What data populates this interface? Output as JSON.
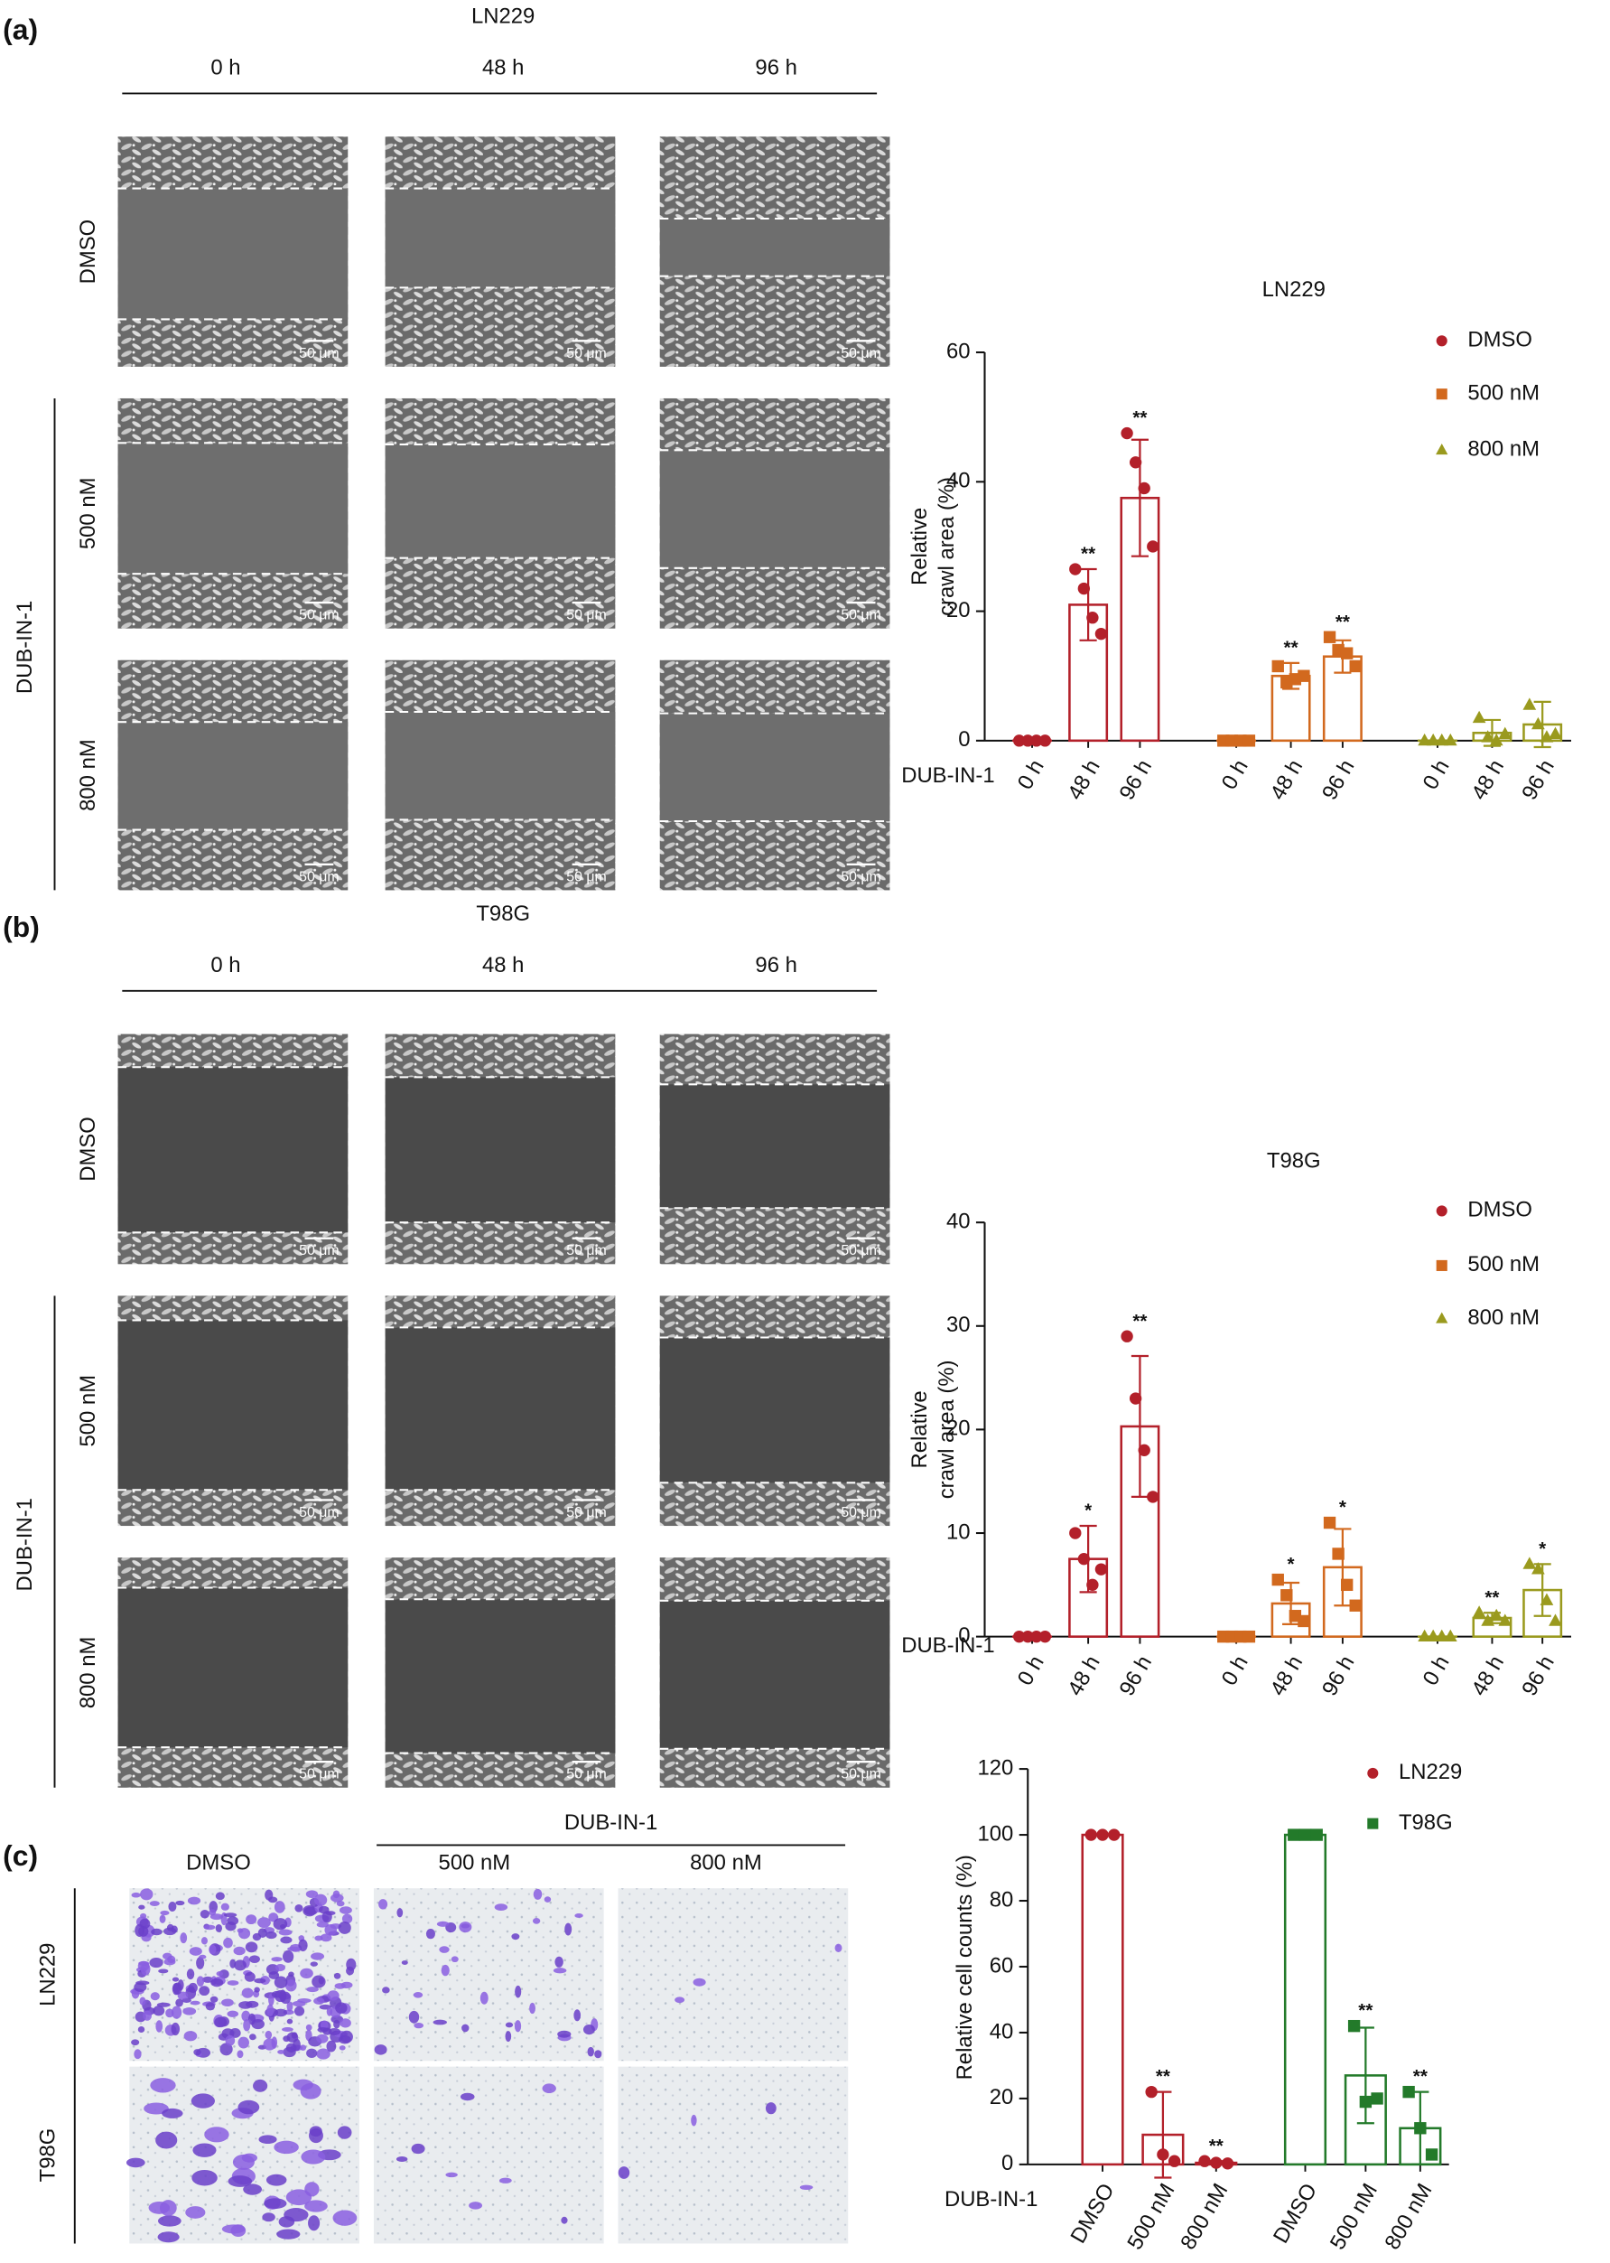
{
  "panels": [
    {
      "label": "(a)",
      "cell_line": "LN229",
      "times": [
        "0 h",
        "48 h",
        "96 h"
      ],
      "rows": [
        "DMSO",
        "500 nM",
        "800 nM"
      ],
      "treatment": "DUB-IN-1",
      "scale_bar": "50 μm"
    },
    {
      "label": "(b)",
      "cell_line": "T98G",
      "times": [
        "0 h",
        "48 h",
        "96 h"
      ],
      "rows": [
        "DMSO",
        "500 nM",
        "800 nM"
      ],
      "treatment": "DUB-IN-1",
      "scale_bar": "50 μm"
    },
    {
      "label": "(c)",
      "treatment": "DUB-IN-1",
      "columns": [
        "DMSO",
        "500 nM",
        "800 nM"
      ],
      "rows": [
        "LN229",
        "T98G"
      ]
    }
  ],
  "chart_data": [
    {
      "type": "bar",
      "title": "LN229",
      "ylabel": [
        "Relative",
        "crawl area (%)"
      ],
      "group_label": "DUB-IN-1",
      "categories": [
        "0 h",
        "48 h",
        "96 h"
      ],
      "ylim": [
        0,
        60
      ],
      "yticks": [
        0,
        20,
        40,
        60
      ],
      "series": [
        {
          "name": "DMSO",
          "color": "#b3202a",
          "marker": "circle",
          "values": [
            0,
            21,
            37.5
          ],
          "errors": [
            0,
            5.5,
            9
          ],
          "points": [
            [
              0,
              0,
              0,
              0
            ],
            [
              26.5,
              23.5,
              19,
              16.5
            ],
            [
              47.5,
              43,
              39,
              30
            ]
          ],
          "annotations": [
            null,
            "**",
            "**"
          ]
        },
        {
          "name": "500 nM",
          "color": "#d2691e",
          "marker": "square",
          "values": [
            0,
            10,
            13
          ],
          "errors": [
            0,
            2,
            2.5
          ],
          "points": [
            [
              0,
              0,
              0,
              0
            ],
            [
              11.5,
              9,
              9.5,
              10
            ],
            [
              16,
              14,
              13.5,
              11.5
            ]
          ],
          "annotations": [
            null,
            "**",
            "**"
          ]
        },
        {
          "name": "800 nM",
          "color": "#9a9a1e",
          "marker": "triangle",
          "values": [
            0,
            1.2,
            2.5
          ],
          "errors": [
            0,
            2,
            3.5
          ],
          "points": [
            [
              0,
              0,
              0,
              0
            ],
            [
              3.5,
              0.5,
              0,
              1
            ],
            [
              5.5,
              2.5,
              0.5,
              1
            ]
          ],
          "annotations": [
            null,
            null,
            null
          ]
        }
      ]
    },
    {
      "type": "bar",
      "title": "T98G",
      "ylabel": [
        "Relative",
        "crawl area (%)"
      ],
      "group_label": "DUB-IN-1",
      "categories": [
        "0 h",
        "48 h",
        "96 h"
      ],
      "ylim": [
        0,
        40
      ],
      "yticks": [
        0,
        10,
        20,
        30,
        40
      ],
      "series": [
        {
          "name": "DMSO",
          "color": "#b3202a",
          "marker": "circle",
          "values": [
            0,
            7.5,
            20.3
          ],
          "errors": [
            0,
            3.2,
            6.8
          ],
          "points": [
            [
              0,
              0,
              0,
              0
            ],
            [
              10,
              7.5,
              5,
              6.5
            ],
            [
              29,
              23,
              18,
              13.5
            ]
          ],
          "annotations": [
            null,
            "*",
            "**"
          ]
        },
        {
          "name": "500 nM",
          "color": "#d2691e",
          "marker": "square",
          "values": [
            0,
            3.2,
            6.7
          ],
          "errors": [
            0,
            2,
            3.7
          ],
          "points": [
            [
              0,
              0,
              0,
              0
            ],
            [
              5.5,
              4,
              2,
              1.5
            ],
            [
              11,
              8,
              5,
              3
            ]
          ],
          "annotations": [
            null,
            "*",
            "*"
          ]
        },
        {
          "name": "800 nM",
          "color": "#9a9a1e",
          "marker": "triangle",
          "values": [
            0,
            1.8,
            4.5
          ],
          "errors": [
            0,
            0.5,
            2.5
          ],
          "points": [
            [
              0,
              0,
              0,
              0
            ],
            [
              2.3,
              1.5,
              2,
              1.5
            ],
            [
              7,
              6.5,
              3.5,
              1.5
            ]
          ],
          "annotations": [
            null,
            "**",
            "*"
          ]
        }
      ]
    },
    {
      "type": "bar",
      "ylabel": [
        "Relative cell counts (%)"
      ],
      "group_label": "DUB-IN-1",
      "categories": [
        "DMSO",
        "500 nM",
        "800 nM"
      ],
      "ylim": [
        0,
        120
      ],
      "yticks": [
        0,
        20,
        40,
        60,
        80,
        100,
        120
      ],
      "series": [
        {
          "name": "LN229",
          "color": "#b3202a",
          "marker": "circle",
          "values": [
            100,
            9,
            0.5
          ],
          "errors": [
            0,
            13,
            0.5
          ],
          "points": [
            [
              100,
              100,
              100
            ],
            [
              22,
              3,
              1
            ],
            [
              1,
              0.5,
              0.3
            ]
          ],
          "annotations": [
            null,
            "**",
            "**"
          ]
        },
        {
          "name": "T98G",
          "color": "#237a2a",
          "marker": "square",
          "values": [
            100,
            27,
            11
          ],
          "errors": [
            0,
            14.5,
            11
          ],
          "points": [
            [
              100,
              100,
              100
            ],
            [
              42,
              19,
              20
            ],
            [
              22,
              11,
              3
            ]
          ],
          "annotations": [
            null,
            "**",
            "**"
          ]
        }
      ]
    }
  ]
}
